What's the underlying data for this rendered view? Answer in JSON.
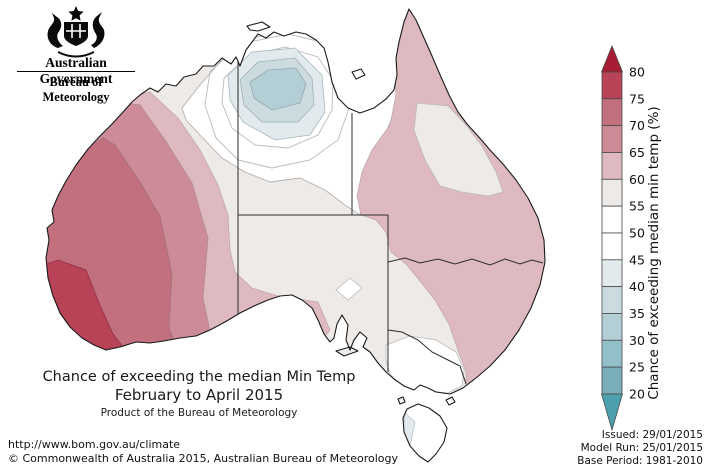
{
  "header": {
    "government": "Australian Government",
    "bureau": "Bureau of Meteorology"
  },
  "title": {
    "line1": "Chance of exceeding the median Min Temp",
    "line2": "February to April 2015",
    "line3": "Product of the Bureau of Meteorology"
  },
  "footer": {
    "url": "http://www.bom.gov.au/climate",
    "copyright": "© Commonwealth of Australia 2015, Australian Bureau of Meteorology"
  },
  "meta": {
    "issued": "Issued: 29/01/2015",
    "model_run": "Model Run: 25/01/2015",
    "base_period": "Base Period: 1981-2010"
  },
  "legend": {
    "label": "Chance of exceeding median min temp (%)",
    "ticks": [
      80,
      75,
      70,
      65,
      60,
      55,
      50,
      45,
      40,
      35,
      30,
      25,
      20
    ],
    "box_colors": [
      "#b84357",
      "#c26f7e",
      "#cd8b98",
      "#debac0",
      "#edeae8",
      "#ffffff",
      "#ffffff",
      "#e2eaed",
      "#cbdbe0",
      "#b3ced5",
      "#93bfc9",
      "#79aebb"
    ],
    "arrow_top_color": "#a81c36",
    "arrow_bottom_color": "#4d9fae"
  },
  "palette": {
    "gt80": "#a81c36",
    "r75": "#b84357",
    "r70": "#c26f7e",
    "r65": "#cd8b98",
    "r60": "#debac0",
    "g55": "#edeae8",
    "white": "#ffffff",
    "b40": "#e2eaed",
    "b35": "#cbdbe0",
    "b30": "#b3ced5",
    "b25": "#93bfc9",
    "b20": "#79aebb",
    "lt20": "#4d9fae"
  },
  "map": {
    "type": "contour probability map",
    "region": "Australia",
    "units": "% chance of exceeding median minimum temperature",
    "features": [
      {
        "area": "southwest WA coastal strip",
        "value": "75-80"
      },
      {
        "area": "southern / western WA band",
        "value": "70-75"
      },
      {
        "area": "central-west WA band",
        "value": "65-70"
      },
      {
        "area": "eastern WA and Great Australian Bight coast",
        "value": "60-65"
      },
      {
        "area": "central Australia, SA and inland belt",
        "value": "55-60"
      },
      {
        "area": "north-central interior ring",
        "value": "45-55"
      },
      {
        "area": "northern interior core (NT/Barkly)",
        "value": "30-45"
      },
      {
        "area": "eastern Queensland and NSW coast",
        "value": "60-65"
      },
      {
        "area": "northeast QLD inland patch",
        "value": "55-60"
      },
      {
        "area": "small SA interior patch",
        "value": "50-55"
      },
      {
        "area": "Victoria and Tasmania",
        "value": "45-55"
      },
      {
        "area": "western Tasmania fringe",
        "value": "40-45"
      }
    ]
  }
}
